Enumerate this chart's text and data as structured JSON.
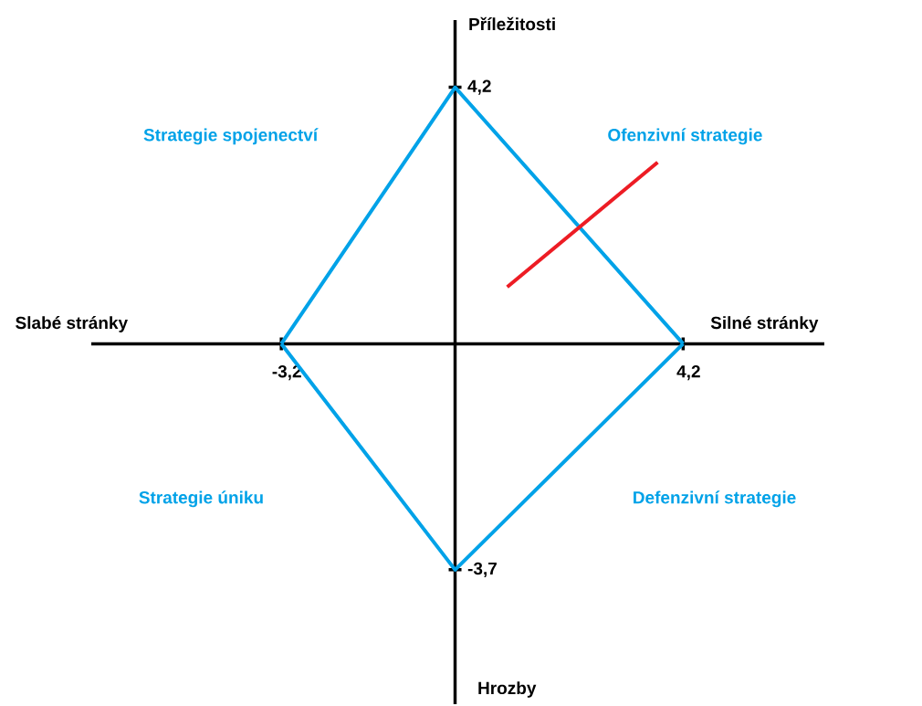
{
  "chart_data": {
    "type": "line",
    "xlabel": "Silné stránky",
    "ylabel": "Příležitosti",
    "xlim": [
      -6.7,
      6.8
    ],
    "ylim": [
      -5.9,
      5.3
    ],
    "xticks": [
      {
        "value": -3.2,
        "label": "-3,2"
      },
      {
        "value": 4.2,
        "label": "4,2"
      }
    ],
    "yticks": [
      {
        "value": -3.7,
        "label": "-3,7"
      },
      {
        "value": 4.2,
        "label": "4,2"
      }
    ],
    "series": [
      {
        "color": "#00a2e8",
        "x": [
          -3.2,
          0,
          4.2
        ],
        "values": [
          0,
          4.2,
          0
        ]
      },
      {
        "color": "#00a2e8",
        "x": [
          -3.2,
          0,
          4.2
        ],
        "values": [
          0,
          -3.7,
          0
        ]
      },
      {
        "color": "#ed1c24",
        "x": [
          0.96,
          3.73
        ],
        "values": [
          0.93,
          2.97
        ]
      }
    ],
    "annotations": [
      "Slabé stránky",
      "Hrozby",
      "Strategie spojenectví",
      "Ofenzivní strategie",
      "Strategie úniku",
      "Defenzivní strategie"
    ],
    "grid": false,
    "marker": "none",
    "line_style": "solid"
  }
}
